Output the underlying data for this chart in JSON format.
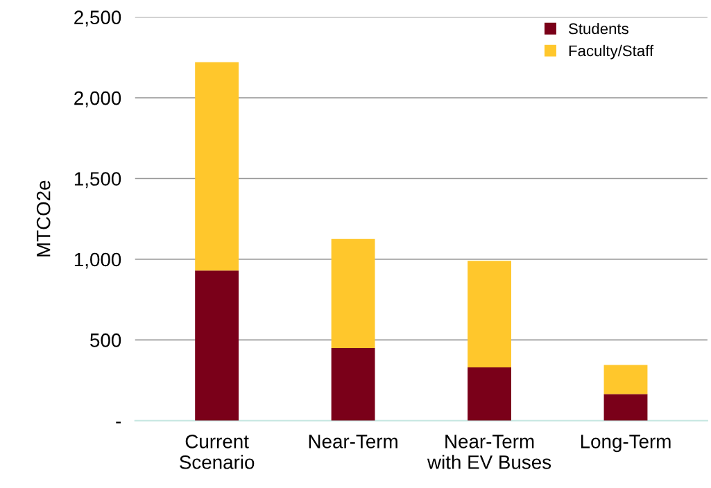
{
  "chart_data": {
    "type": "bar",
    "stacked": true,
    "ylabel": "MTCO2e",
    "categories": [
      "Current\nScenario",
      "Near-Term",
      "Near-Term\nwith EV Buses",
      "Long-Term"
    ],
    "series": [
      {
        "name": "Students",
        "color": "#7a0019",
        "values": [
          930,
          450,
          330,
          165
        ]
      },
      {
        "name": "Faculty/Staff",
        "color": "#ffc72c",
        "values": [
          1290,
          675,
          660,
          180
        ]
      }
    ],
    "ylim": [
      0,
      2500
    ],
    "yticks": [
      {
        "value": 0,
        "label": "-"
      },
      {
        "value": 500,
        "label": "500"
      },
      {
        "value": 1000,
        "label": "1,000"
      },
      {
        "value": 1500,
        "label": "1,500"
      },
      {
        "value": 2000,
        "label": "2,000"
      },
      {
        "value": 2500,
        "label": "2,500"
      }
    ],
    "grid": "y",
    "legend": "top right"
  }
}
